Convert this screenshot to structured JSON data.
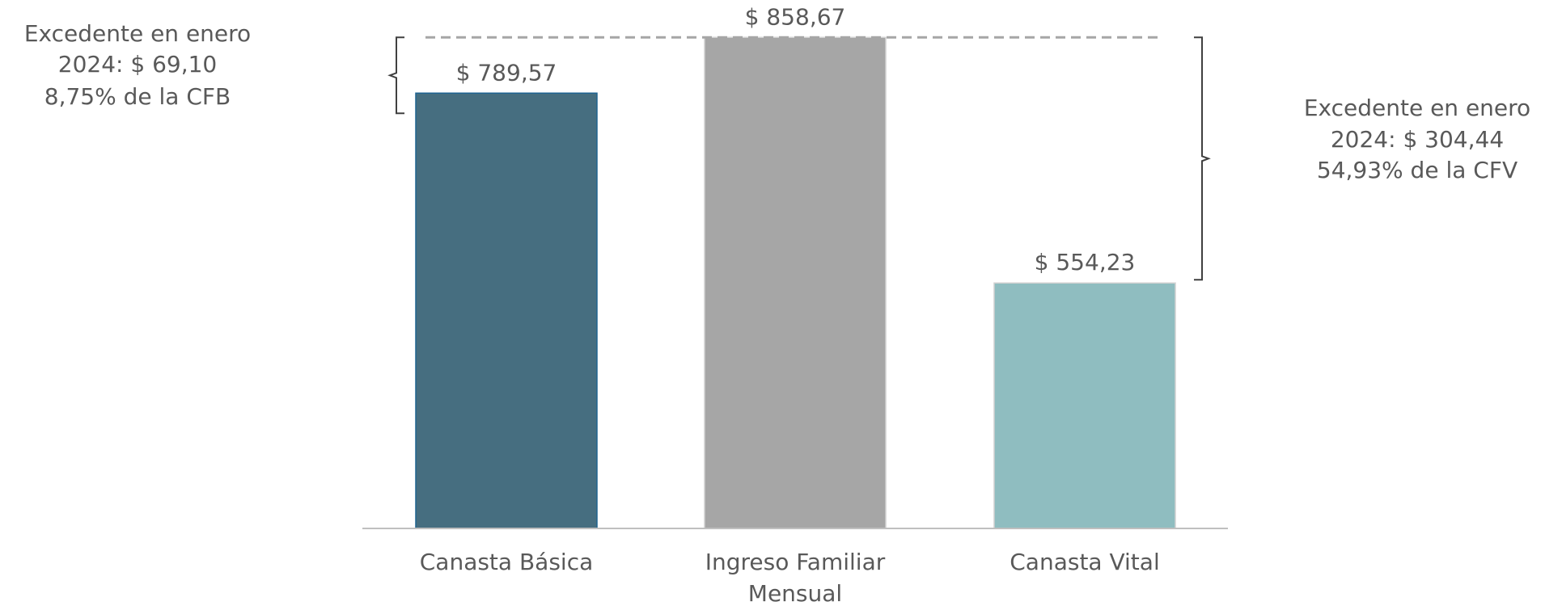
{
  "chart_data": {
    "type": "bar",
    "categories": [
      "Canasta Básica",
      "Ingreso Familiar Mensual",
      "Canasta Vital"
    ],
    "values": [
      789.57,
      858.67,
      554.23
    ],
    "value_labels": [
      "$ 789,57",
      "$ 858,67",
      "$ 554,23"
    ],
    "colors": [
      "#466e80",
      "#a6a6a6",
      "#8fbdc0"
    ],
    "ylim": [
      250,
      900
    ],
    "annotations": [
      {
        "lines": [
          "Excedente en enero",
          "2024: $ 69,10",
          "8,75% de la CFB"
        ]
      },
      {
        "lines": [
          "Excedente en enero",
          "2024: $ 304,44",
          "54,93% de la CFV"
        ]
      }
    ]
  }
}
